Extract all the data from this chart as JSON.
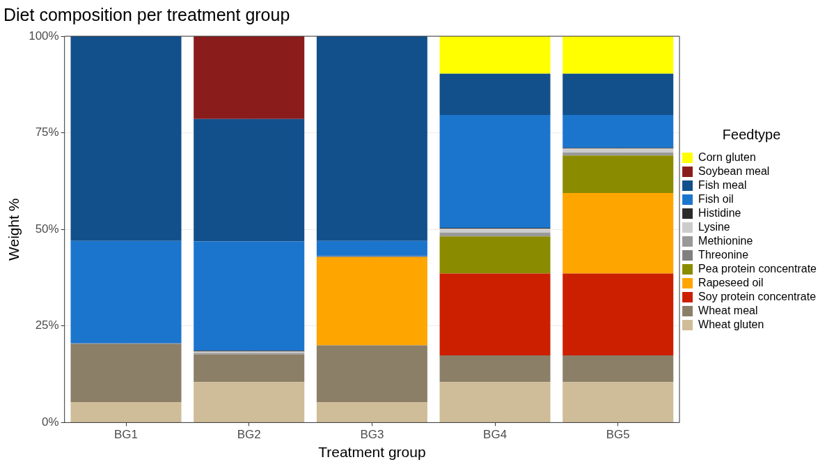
{
  "chart_data": {
    "type": "bar",
    "title": "Diet composition per treatment group",
    "xlabel": "Treatment group",
    "ylabel": "Weight %",
    "legend_title": "Feedtype",
    "categories": [
      "BG1",
      "BG2",
      "BG3",
      "BG4",
      "BG5"
    ],
    "stacked": true,
    "ylim": [
      0,
      100
    ],
    "yticks": [
      {
        "value": 0,
        "label": "0%"
      },
      {
        "value": 25,
        "label": "25%"
      },
      {
        "value": 50,
        "label": "50%"
      },
      {
        "value": 75,
        "label": "75%"
      },
      {
        "value": 100,
        "label": "100%"
      }
    ],
    "grid": true,
    "legend": "right",
    "series": [
      {
        "name": "Wheat gluten",
        "color": "#cfbc98",
        "values": [
          5.3,
          10.5,
          5.3,
          10.5,
          10.5
        ]
      },
      {
        "name": "Wheat meal",
        "color": "#8b7f67",
        "values": [
          15.0,
          7.1,
          14.7,
          6.9,
          6.9
        ]
      },
      {
        "name": "Soy protein concentrate",
        "color": "#cc1f00",
        "values": [
          0,
          0,
          0,
          21.2,
          21.2
        ]
      },
      {
        "name": "Rapeseed oil",
        "color": "#ffa500",
        "values": [
          0,
          0,
          22.8,
          0,
          20.8
        ]
      },
      {
        "name": "Pea protein concentrate",
        "color": "#8b8b00",
        "values": [
          0,
          0,
          0,
          9.6,
          9.7
        ]
      },
      {
        "name": "Threonine",
        "color": "#808080",
        "values": [
          0.2,
          0,
          0.3,
          0,
          0
        ]
      },
      {
        "name": "Methionine",
        "color": "#999999",
        "values": [
          0,
          0.4,
          0,
          1.0,
          0.8
        ]
      },
      {
        "name": "Lysine",
        "color": "#cccccc",
        "values": [
          0,
          0.4,
          0,
          1.0,
          1.0
        ]
      },
      {
        "name": "Histidine",
        "color": "#2b2b2b",
        "values": [
          0,
          0.2,
          0,
          0.2,
          0.2
        ]
      },
      {
        "name": "Fish oil",
        "color": "#1c75cd",
        "values": [
          26.5,
          28.3,
          3.9,
          29.2,
          8.5
        ]
      },
      {
        "name": "Fish meal",
        "color": "#12508c",
        "values": [
          53.0,
          31.7,
          53.0,
          10.7,
          10.7
        ]
      },
      {
        "name": "Soybean meal",
        "color": "#8b1c1c",
        "values": [
          0,
          21.4,
          0,
          0,
          0
        ]
      },
      {
        "name": "Corn gluten",
        "color": "#ffff00",
        "values": [
          0,
          0,
          0,
          9.7,
          9.7
        ]
      }
    ]
  }
}
